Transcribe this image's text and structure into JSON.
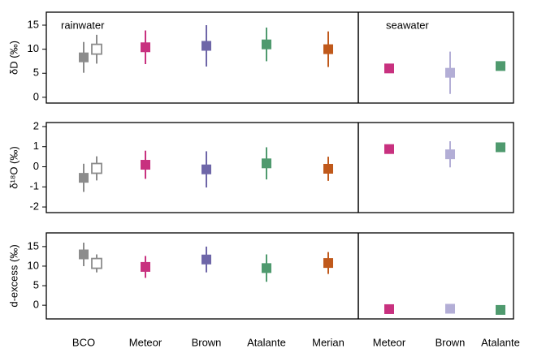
{
  "chart_data": [
    {
      "type": "errorbar",
      "y_label": "δD (‰)",
      "annotations": [
        "rainwater",
        "seawater"
      ],
      "ylim": [
        -1.2,
        17.7
      ],
      "yticks": [
        0,
        5,
        10,
        15
      ],
      "colors": [
        "#8c8c8c",
        "#c8317f",
        "#6e66a8",
        "#4f9a6e",
        "#c0591b",
        "#c8317f",
        "#b3aed6",
        "#4f9a6e"
      ],
      "series": [
        {
          "marker": "filled",
          "values": [
            8.3,
            10.4,
            10.7,
            11,
            10,
            6,
            5.1,
            6.5
          ],
          "errors": [
            3.2,
            3.5,
            4.3,
            3.5,
            3.7,
            0,
            4.4,
            0
          ]
        },
        {
          "marker": "open",
          "values": [
            10,
            null,
            null,
            null,
            null,
            null,
            null,
            null
          ],
          "errors": [
            3,
            null,
            null,
            null,
            null,
            null,
            null,
            null
          ]
        }
      ]
    },
    {
      "type": "errorbar",
      "y_label": "δ¹⁸O (‰)",
      "ylim": [
        -2.28,
        2.2
      ],
      "yticks": [
        -2,
        -1,
        0,
        1,
        2
      ],
      "colors": [
        "#8c8c8c",
        "#c8317f",
        "#6e66a8",
        "#4f9a6e",
        "#c0591b",
        "#c8317f",
        "#b3aed6",
        "#4f9a6e"
      ],
      "series": [
        {
          "marker": "filled",
          "values": [
            -0.55,
            0.1,
            -0.13,
            0.17,
            -0.1,
            0.88,
            0.62,
            0.97
          ],
          "errors": [
            0.7,
            0.7,
            0.9,
            0.8,
            0.6,
            0,
            0.65,
            0
          ]
        },
        {
          "marker": "open",
          "values": [
            -0.08,
            null,
            null,
            null,
            null,
            null,
            null,
            null
          ],
          "errors": [
            0.6,
            null,
            null,
            null,
            null,
            null,
            null,
            null
          ]
        }
      ]
    },
    {
      "type": "errorbar",
      "y_label": "d-excess (‰)",
      "categories": [
        "BCO",
        "Meteor",
        "Brown",
        "Atalante",
        "Merian",
        "Meteor",
        "Brown",
        "Atalante"
      ],
      "ylim": [
        -3.5,
        18.5
      ],
      "yticks": [
        0,
        5,
        10,
        15
      ],
      "colors": [
        "#8c8c8c",
        "#c8317f",
        "#6e66a8",
        "#4f9a6e",
        "#c0591b",
        "#c8317f",
        "#b3aed6",
        "#4f9a6e"
      ],
      "series": [
        {
          "marker": "filled",
          "values": [
            13,
            9.8,
            11.7,
            9.5,
            10.8,
            -1,
            -0.9,
            -1.2
          ],
          "errors": [
            3,
            2.8,
            3.3,
            3.5,
            2.8,
            0,
            0.4,
            0
          ]
        },
        {
          "marker": "open",
          "values": [
            10.7,
            null,
            null,
            null,
            null,
            null,
            null,
            null
          ],
          "errors": [
            2.3,
            null,
            null,
            null,
            null,
            null,
            null,
            null
          ]
        }
      ]
    }
  ]
}
